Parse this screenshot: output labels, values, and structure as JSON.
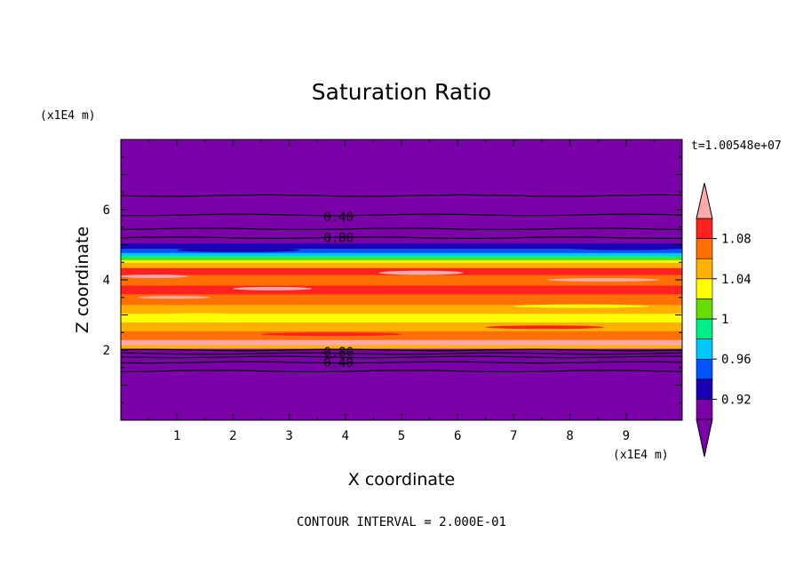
{
  "chart_data": {
    "type": "heatmap",
    "title": "Saturation Ratio",
    "xlabel": "X coordinate",
    "ylabel": "Z coordinate",
    "x_unit": "(x1E4 m)",
    "y_unit": "(x1E4 m)",
    "xlim": [
      0,
      10
    ],
    "ylim": [
      0,
      8
    ],
    "xticks": [
      1,
      2,
      3,
      4,
      5,
      6,
      7,
      8,
      9
    ],
    "yticks": [
      2,
      4,
      6
    ],
    "time_label": "t=1.00548e+07",
    "contour_interval_note": "CONTOUR INTERVAL = 2.000E-01",
    "contour_labels": [
      {
        "text": "0.40",
        "x": 3.5,
        "z": 5.8
      },
      {
        "text": "0.80",
        "x": 3.5,
        "z": 5.2
      },
      {
        "text": "0.80",
        "x": 3.5,
        "z": 1.95
      },
      {
        "text": "0.40",
        "x": 3.5,
        "z": 1.65
      }
    ],
    "contour_lines_z": [
      6.4,
      5.85,
      5.45,
      5.2,
      2.0,
      1.9,
      1.8,
      1.65,
      1.4
    ],
    "colorbar": {
      "levels": [
        0.9,
        0.92,
        0.94,
        0.96,
        0.98,
        1.0,
        1.02,
        1.04,
        1.06,
        1.08,
        1.1
      ],
      "tick_labels": [
        "0.92",
        "0.96",
        "1",
        "1.04",
        "1.08"
      ],
      "colors": [
        "#7a00a8",
        "#1a00b4",
        "#0055ff",
        "#00c8ff",
        "#00ee88",
        "#66dd00",
        "#ffff00",
        "#ffb000",
        "#ff7000",
        "#ff2020"
      ],
      "over_color": "#ffaaaa",
      "under_color": "#7a00a8"
    },
    "bands": [
      {
        "z0": 0.0,
        "z1": 2.05,
        "value": 0.5
      },
      {
        "z0": 2.05,
        "z1": 2.15,
        "value": 1.05
      },
      {
        "z0": 2.15,
        "z1": 2.3,
        "value": 1.11
      },
      {
        "z0": 2.3,
        "z1": 2.55,
        "value": 1.07
      },
      {
        "z0": 2.55,
        "z1": 2.8,
        "value": 1.05
      },
      {
        "z0": 2.8,
        "z1": 3.05,
        "value": 1.03
      },
      {
        "z0": 3.05,
        "z1": 3.3,
        "value": 1.05
      },
      {
        "z0": 3.3,
        "z1": 3.6,
        "value": 1.07
      },
      {
        "z0": 3.6,
        "z1": 3.85,
        "value": 1.09
      },
      {
        "z0": 3.85,
        "z1": 4.15,
        "value": 1.07
      },
      {
        "z0": 4.15,
        "z1": 4.35,
        "value": 1.09
      },
      {
        "z0": 4.35,
        "z1": 4.5,
        "value": 1.05
      },
      {
        "z0": 4.5,
        "z1": 4.57,
        "value": 1.03
      },
      {
        "z0": 4.57,
        "z1": 4.63,
        "value": 1.01
      },
      {
        "z0": 4.63,
        "z1": 4.7,
        "value": 0.99
      },
      {
        "z0": 4.7,
        "z1": 4.78,
        "value": 0.97
      },
      {
        "z0": 4.78,
        "z1": 4.9,
        "value": 0.95
      },
      {
        "z0": 4.9,
        "z1": 5.05,
        "value": 0.93
      },
      {
        "z0": 5.05,
        "z1": 8.0,
        "value": 0.5
      }
    ],
    "streaks": [
      {
        "x0": 0.0,
        "x1": 1.2,
        "z": 4.1,
        "h": 0.05,
        "value": 1.11
      },
      {
        "x0": 4.6,
        "x1": 6.1,
        "z": 4.2,
        "h": 0.06,
        "value": 1.11
      },
      {
        "x0": 2.0,
        "x1": 3.4,
        "z": 3.75,
        "h": 0.05,
        "value": 1.11
      },
      {
        "x0": 0.6,
        "x1": 2.2,
        "z": 3.0,
        "h": 0.05,
        "value": 1.03
      },
      {
        "x0": 4.0,
        "x1": 6.2,
        "z": 2.85,
        "h": 0.06,
        "value": 1.03
      },
      {
        "x0": 7.0,
        "x1": 9.4,
        "z": 3.25,
        "h": 0.05,
        "value": 1.03
      },
      {
        "x0": 2.5,
        "x1": 5.0,
        "z": 2.45,
        "h": 0.05,
        "value": 1.09
      },
      {
        "x0": 6.5,
        "x1": 8.6,
        "z": 2.65,
        "h": 0.05,
        "value": 1.09
      },
      {
        "x0": 0.3,
        "x1": 1.6,
        "z": 3.5,
        "h": 0.04,
        "value": 1.11
      },
      {
        "x0": 7.6,
        "x1": 9.6,
        "z": 4.0,
        "h": 0.05,
        "value": 1.11
      },
      {
        "x0": 1.0,
        "x1": 3.2,
        "z": 4.85,
        "h": 0.06,
        "value": 0.93
      },
      {
        "x0": 8.0,
        "x1": 10.0,
        "z": 4.9,
        "h": 0.05,
        "value": 0.93
      },
      {
        "x0": 4.2,
        "x1": 6.0,
        "z": 2.1,
        "h": 0.05,
        "value": 1.05
      }
    ]
  }
}
